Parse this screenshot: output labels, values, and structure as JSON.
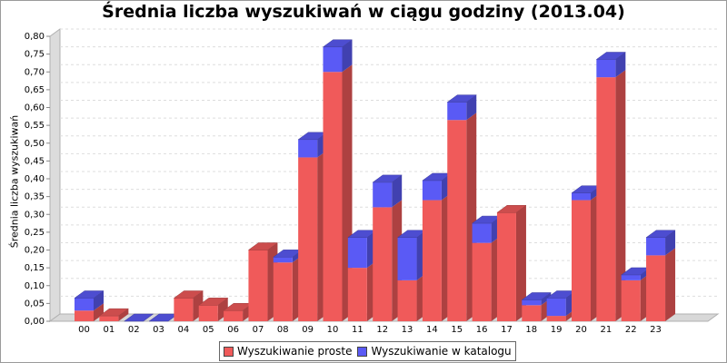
{
  "chart_data": {
    "type": "bar",
    "stacked": true,
    "title": "Średnia liczba wyszukiwań w ciągu godziny (2013.04)",
    "ylabel": "Średnia liczba wyszukiwań",
    "ylim": [
      0,
      0.8
    ],
    "yticks": [
      "0,00",
      "0,05",
      "0,10",
      "0,15",
      "0,20",
      "0,25",
      "0,30",
      "0,35",
      "0,40",
      "0,45",
      "0,50",
      "0,55",
      "0,60",
      "0,65",
      "0,70",
      "0,75",
      "0,80"
    ],
    "categories": [
      "00",
      "01",
      "02",
      "03",
      "04",
      "05",
      "06",
      "07",
      "08",
      "09",
      "10",
      "11",
      "12",
      "13",
      "14",
      "15",
      "16",
      "17",
      "18",
      "19",
      "20",
      "21",
      "22",
      "23"
    ],
    "grid": true,
    "legend_position": "bottom",
    "series": [
      {
        "name": "Wyszukiwanie proste",
        "color": "#f05a5a",
        "values": [
          0.03,
          0.015,
          0,
          0,
          0.065,
          0.045,
          0.03,
          0.2,
          0.165,
          0.46,
          0.7,
          0.15,
          0.32,
          0.115,
          0.34,
          0.565,
          0.22,
          0.305,
          0.045,
          0.015,
          0.34,
          0.685,
          0.115,
          0.185
        ]
      },
      {
        "name": "Wyszukiwanie w katalogu",
        "color": "#5a5af5",
        "values": [
          0.035,
          0,
          0,
          0,
          0,
          0,
          0,
          0,
          0.015,
          0.05,
          0.07,
          0.085,
          0.07,
          0.12,
          0.055,
          0.05,
          0.055,
          0,
          0.015,
          0.05,
          0.02,
          0.05,
          0.015,
          0.05
        ]
      }
    ]
  }
}
